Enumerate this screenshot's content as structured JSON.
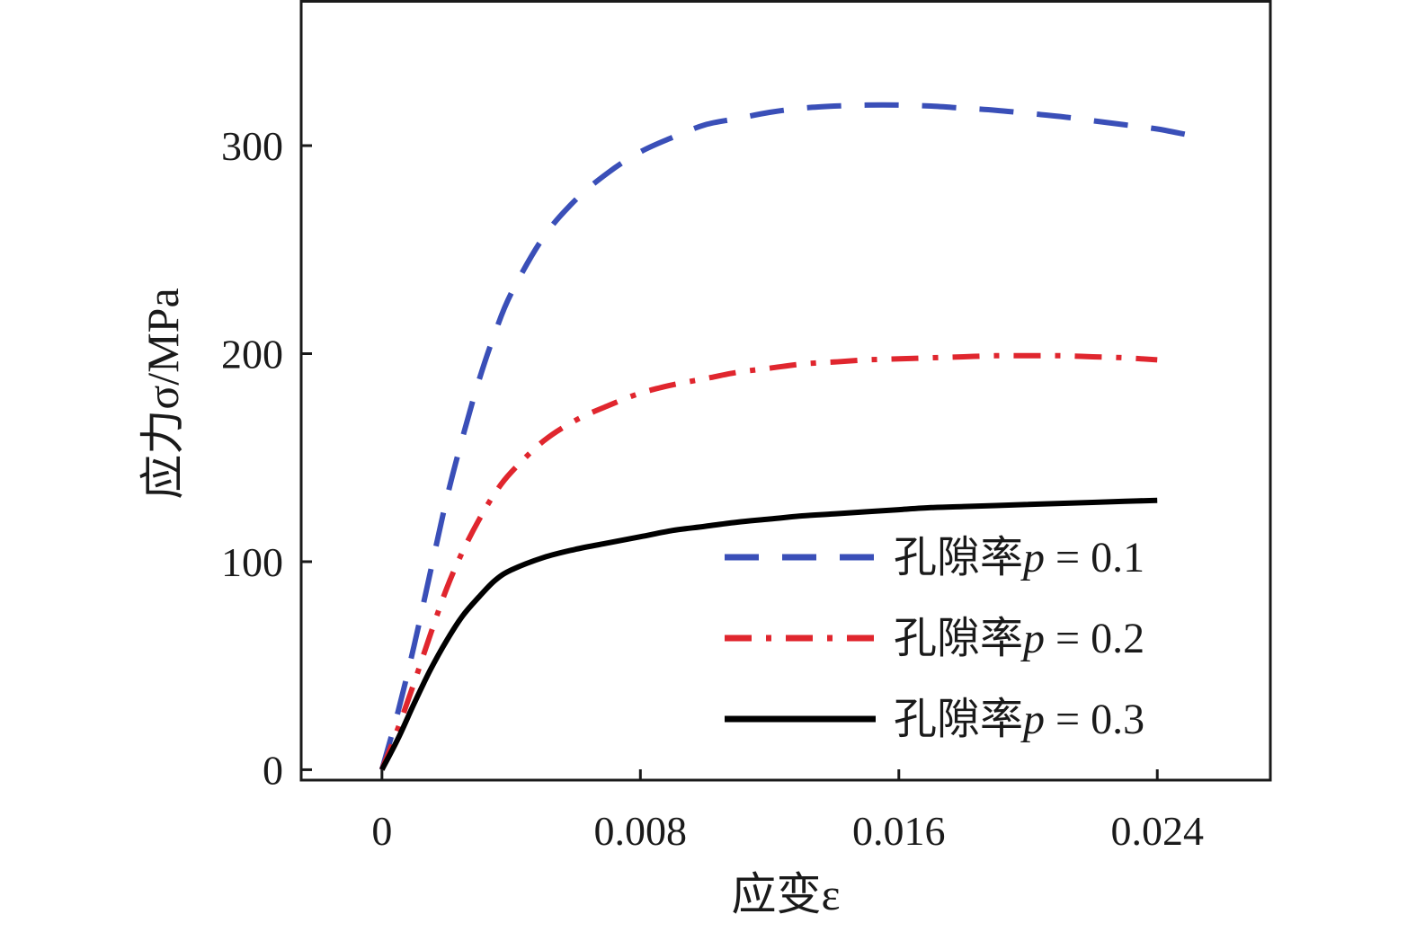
{
  "chart_data": {
    "type": "line",
    "xlabel": "应变ε",
    "ylabel": "应力σ/MPa",
    "xlim": [
      -0.0025,
      0.0275
    ],
    "ylim": [
      -5,
      370
    ],
    "xticks": [
      0,
      0.008,
      0.016,
      0.024
    ],
    "xtick_labels": [
      "0",
      "0.008",
      "0.016",
      "0.024"
    ],
    "yticks": [
      0,
      100,
      200,
      300
    ],
    "ytick_labels": [
      "0",
      "100",
      "200",
      "300"
    ],
    "grid": false,
    "legend_position": "lower-right",
    "series": [
      {
        "name": "孔隙率p = 0.1",
        "legend_prefix": "孔隙率",
        "legend_var": "p",
        "legend_value": " = 0.1",
        "color": "#3a4fb8",
        "style": "dashed",
        "x": [
          0,
          0.0005,
          0.001,
          0.0015,
          0.002,
          0.0025,
          0.003,
          0.0035,
          0.004,
          0.005,
          0.006,
          0.007,
          0.008,
          0.009,
          0.01,
          0.011,
          0.012,
          0.013,
          0.014,
          0.015,
          0.016,
          0.017,
          0.018,
          0.019,
          0.02,
          0.021,
          0.022,
          0.023,
          0.024,
          0.025
        ],
        "y": [
          0,
          28,
          60,
          95,
          130,
          160,
          187,
          210,
          229,
          256,
          274,
          287,
          297,
          304,
          310,
          313,
          316,
          318,
          319,
          319.5,
          319.5,
          319,
          318,
          317,
          315.5,
          314,
          312,
          310,
          308,
          305
        ]
      },
      {
        "name": "孔隙率p = 0.2",
        "legend_prefix": "孔隙率",
        "legend_var": "p",
        "legend_value": " = 0.2",
        "color": "#e0262e",
        "style": "dashdot",
        "x": [
          0,
          0.0005,
          0.001,
          0.0015,
          0.002,
          0.0025,
          0.003,
          0.0035,
          0.004,
          0.005,
          0.006,
          0.007,
          0.008,
          0.009,
          0.01,
          0.011,
          0.012,
          0.013,
          0.014,
          0.015,
          0.016,
          0.017,
          0.018,
          0.019,
          0.02,
          0.021,
          0.022,
          0.023,
          0.024
        ],
        "y": [
          0,
          20,
          42,
          65,
          87,
          105,
          120,
          133,
          143,
          158,
          168,
          175,
          181,
          185,
          188,
          191,
          193,
          195,
          196,
          197,
          197.5,
          198,
          198.5,
          199,
          199,
          199,
          198.5,
          198,
          197
        ]
      },
      {
        "name": "孔隙率p = 0.3",
        "legend_prefix": "孔隙率",
        "legend_var": "p",
        "legend_value": " = 0.3",
        "color": "#000000",
        "style": "solid",
        "x": [
          0,
          0.0005,
          0.001,
          0.0015,
          0.002,
          0.0025,
          0.003,
          0.0035,
          0.004,
          0.005,
          0.006,
          0.007,
          0.008,
          0.009,
          0.01,
          0.011,
          0.012,
          0.013,
          0.014,
          0.015,
          0.016,
          0.017,
          0.018,
          0.019,
          0.02,
          0.021,
          0.022,
          0.023,
          0.024
        ],
        "y": [
          0,
          15,
          32,
          48,
          62,
          74,
          83,
          91,
          96,
          102,
          106,
          109,
          112,
          115,
          117,
          119,
          120.5,
          122,
          123,
          124,
          125,
          126,
          126.5,
          127,
          127.5,
          128,
          128.5,
          129,
          129.5
        ]
      }
    ]
  }
}
